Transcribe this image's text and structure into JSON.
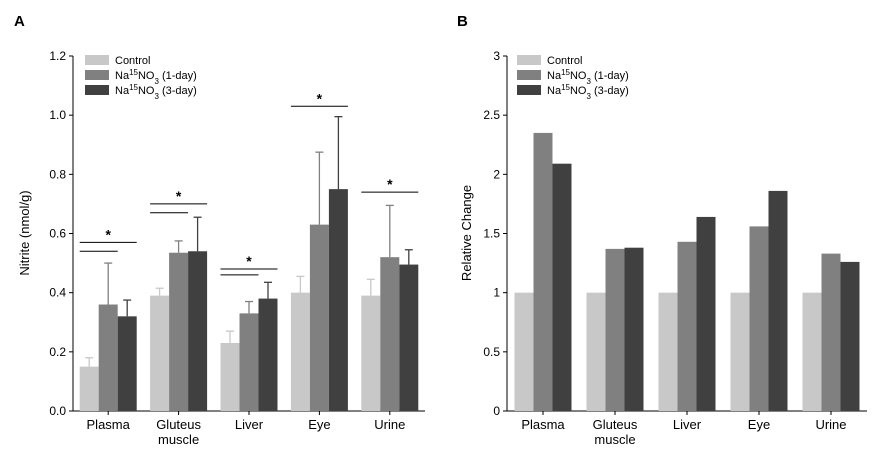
{
  "chart_data": [
    {
      "panel": "A",
      "type": "bar",
      "ylabel": "Nitrite (nmol/g)",
      "ylim": [
        0,
        1.2
      ],
      "yticks": [
        "0.0",
        "0.2",
        "0.4",
        "0.6",
        "0.8",
        "1.0",
        "1.2"
      ],
      "categories": [
        {
          "line1": "Plasma",
          "line2": ""
        },
        {
          "line1": "Gluteus",
          "line2": "muscle"
        },
        {
          "line1": "Liver",
          "line2": ""
        },
        {
          "line1": "Eye",
          "line2": ""
        },
        {
          "line1": "Urine",
          "line2": ""
        }
      ],
      "series": [
        {
          "name": "Control",
          "color": "#c8c8c8",
          "values": [
            0.15,
            0.39,
            0.23,
            0.4,
            0.39
          ],
          "errors": [
            0.03,
            0.025,
            0.04,
            0.055,
            0.055
          ]
        },
        {
          "name": "Na15NO3 (1-day)",
          "color": "#808080",
          "values": [
            0.36,
            0.535,
            0.33,
            0.63,
            0.52
          ],
          "errors": [
            0.14,
            0.04,
            0.04,
            0.245,
            0.175
          ]
        },
        {
          "name": "Na15NO3 (3-day)",
          "color": "#404040",
          "values": [
            0.32,
            0.54,
            0.38,
            0.75,
            0.495
          ],
          "errors": [
            0.055,
            0.115,
            0.055,
            0.245,
            0.05
          ]
        }
      ],
      "significance": [
        {
          "category": 0,
          "label": "*",
          "y": 0.57,
          "second_line_y": 0.54
        },
        {
          "category": 1,
          "label": "*",
          "y": 0.7,
          "second_line_y": 0.67
        },
        {
          "category": 2,
          "label": "*",
          "y": 0.48,
          "second_line_y": 0.46
        },
        {
          "category": 3,
          "label": "*",
          "y": 1.03,
          "second_line_y": null
        },
        {
          "category": 4,
          "label": "*",
          "y": 0.74,
          "second_line_y": null
        }
      ],
      "legend": {
        "position": "top-left"
      }
    },
    {
      "panel": "B",
      "type": "bar",
      "ylabel": "Relative Change",
      "ylim": [
        0,
        3
      ],
      "yticks": [
        "0",
        "0.5",
        "1",
        "1.5",
        "2",
        "2.5",
        "3"
      ],
      "categories": [
        {
          "line1": "Plasma",
          "line2": ""
        },
        {
          "line1": "Gluteus",
          "line2": "muscle"
        },
        {
          "line1": "Liver",
          "line2": ""
        },
        {
          "line1": "Eye",
          "line2": ""
        },
        {
          "line1": "Urine",
          "line2": ""
        }
      ],
      "series": [
        {
          "name": "Control",
          "color": "#c8c8c8",
          "values": [
            1,
            1,
            1,
            1,
            1
          ]
        },
        {
          "name": "Na15NO3 (1-day)",
          "color": "#808080",
          "values": [
            2.35,
            1.37,
            1.43,
            1.56,
            1.33
          ]
        },
        {
          "name": "Na15NO3 (3-day)",
          "color": "#404040",
          "values": [
            2.09,
            1.38,
            1.64,
            1.86,
            1.26
          ]
        }
      ],
      "legend": {
        "position": "top-left"
      }
    }
  ]
}
